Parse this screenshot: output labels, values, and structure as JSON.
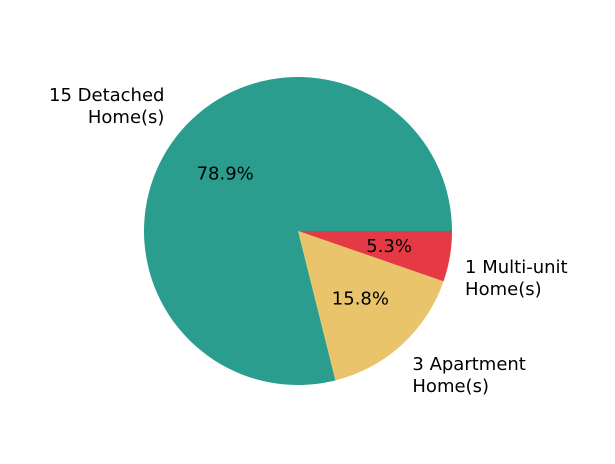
{
  "chart_data": {
    "type": "pie",
    "start_angle_deg": 0,
    "direction": "clockwise",
    "slices": [
      {
        "label_lines": [
          "1 Multi-unit",
          "Home(s)"
        ],
        "count": 1,
        "value": 5.3,
        "pct_label": "5.3%",
        "color": "#e63946"
      },
      {
        "label_lines": [
          "3 Apartment",
          "Home(s)"
        ],
        "count": 3,
        "value": 15.8,
        "pct_label": "15.8%",
        "color": "#e9c46a"
      },
      {
        "label_lines": [
          "15 Detached",
          "Home(s)"
        ],
        "count": 15,
        "value": 78.9,
        "pct_label": "78.9%",
        "color": "#2a9d8f"
      }
    ],
    "title": "",
    "legend": "none"
  }
}
